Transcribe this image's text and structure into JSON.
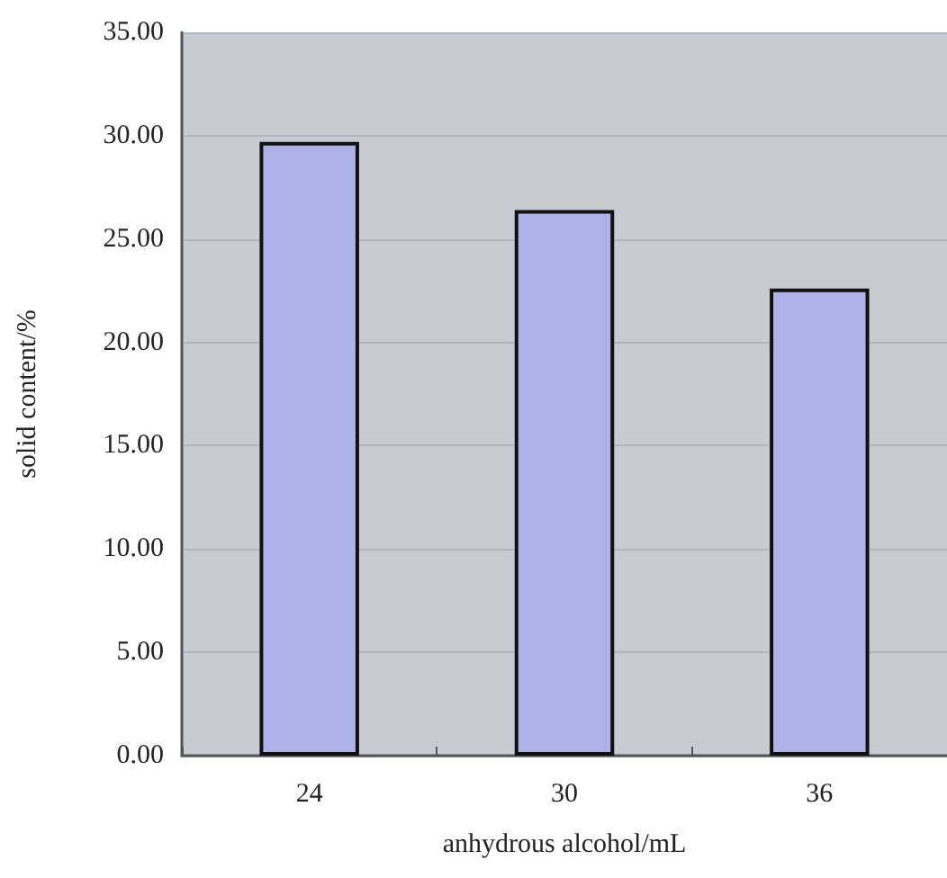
{
  "chart_data": {
    "type": "bar",
    "xlabel": "anhydrous alcohol/mL",
    "ylabel": "solid content/%",
    "categories": [
      "24",
      "30",
      "36"
    ],
    "values": [
      29.7,
      26.4,
      22.6
    ],
    "color": "#aeb2e6",
    "ylim": [
      0,
      35
    ],
    "yticks": [
      {
        "value": 0,
        "label": "0.00"
      },
      {
        "value": 5,
        "label": "5.00"
      },
      {
        "value": 10,
        "label": "10.00"
      },
      {
        "value": 15,
        "label": "15.00"
      },
      {
        "value": 20,
        "label": "20.00"
      },
      {
        "value": 25,
        "label": "25.00"
      },
      {
        "value": 30,
        "label": "30.00"
      },
      {
        "value": 35,
        "label": "35.00"
      }
    ],
    "grid": "y"
  }
}
